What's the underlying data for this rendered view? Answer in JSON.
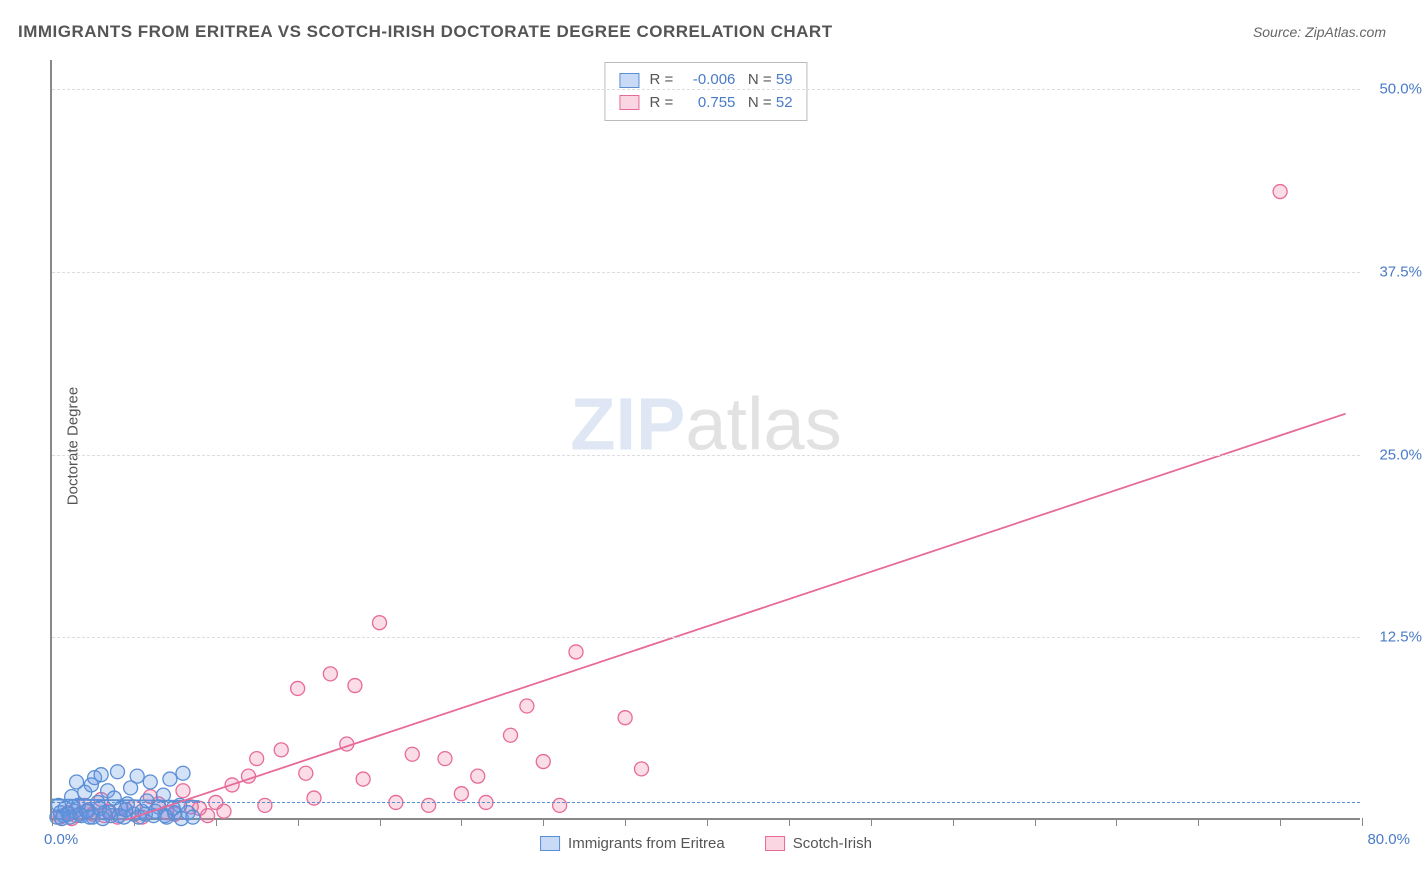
{
  "title": "IMMIGRANTS FROM ERITREA VS SCOTCH-IRISH DOCTORATE DEGREE CORRELATION CHART",
  "source_prefix": "Source: ",
  "source_name": "ZipAtlas.com",
  "ylabel": "Doctorate Degree",
  "watermark_a": "ZIP",
  "watermark_b": "atlas",
  "stats": {
    "series1": {
      "label_r": "R",
      "eq": "=",
      "r": "-0.006",
      "label_n": "N",
      "n": "59"
    },
    "series2": {
      "label_r": "R",
      "eq": "=",
      "r": "0.755",
      "label_n": "N",
      "n": "52"
    }
  },
  "legend": {
    "s1": "Immigrants from Eritrea",
    "s2": "Scotch-Irish"
  },
  "chart": {
    "type": "scatter",
    "xlim": [
      0,
      80
    ],
    "ylim": [
      0,
      52
    ],
    "x_origin_label": "0.0%",
    "x_max_label": "80.0%",
    "y_ticks": [
      {
        "v": 12.5,
        "label": "12.5%"
      },
      {
        "v": 25.0,
        "label": "25.0%"
      },
      {
        "v": 37.5,
        "label": "37.5%"
      },
      {
        "v": 50.0,
        "label": "50.0%"
      }
    ],
    "x_tick_step": 5,
    "dashed_y_line": 1.2,
    "background_color": "#ffffff",
    "grid_color": "#dddddd",
    "axis_color": "#888888",
    "label_color": "#4a7bc8",
    "marker_radius": 7,
    "marker_stroke_width": 1.3,
    "line_width": 1.8,
    "series": {
      "eritrea": {
        "color_fill": "rgba(100,150,230,0.28)",
        "color_stroke": "#5a8fd6",
        "trend": {
          "x1": 0,
          "y1": 1.4,
          "x2": 9,
          "y2": 1.3
        },
        "points": [
          [
            0.3,
            0.2
          ],
          [
            0.5,
            0.5
          ],
          [
            0.4,
            1.0
          ],
          [
            0.7,
            0.3
          ],
          [
            0.8,
            0.8
          ],
          [
            1.0,
            0.4
          ],
          [
            1.2,
            1.6
          ],
          [
            1.4,
            0.6
          ],
          [
            1.5,
            2.6
          ],
          [
            1.6,
            1.0
          ],
          [
            1.8,
            0.3
          ],
          [
            2.0,
            1.9
          ],
          [
            2.2,
            0.7
          ],
          [
            2.4,
            2.4
          ],
          [
            2.5,
            0.2
          ],
          [
            2.6,
            2.9
          ],
          [
            2.8,
            1.2
          ],
          [
            3.0,
            3.1
          ],
          [
            3.2,
            0.5
          ],
          [
            3.4,
            2.0
          ],
          [
            3.6,
            0.3
          ],
          [
            3.8,
            1.5
          ],
          [
            4.0,
            3.3
          ],
          [
            4.2,
            0.8
          ],
          [
            4.4,
            0.2
          ],
          [
            4.6,
            1.1
          ],
          [
            4.8,
            2.2
          ],
          [
            5.0,
            0.4
          ],
          [
            5.2,
            3.0
          ],
          [
            5.5,
            0.6
          ],
          [
            5.8,
            1.3
          ],
          [
            6.0,
            2.6
          ],
          [
            6.2,
            0.3
          ],
          [
            6.5,
            0.9
          ],
          [
            6.8,
            1.7
          ],
          [
            7.0,
            0.2
          ],
          [
            7.2,
            2.8
          ],
          [
            7.5,
            0.5
          ],
          [
            7.8,
            1.0
          ],
          [
            8.0,
            3.2
          ],
          [
            0.6,
            0.1
          ],
          [
            1.1,
            0.2
          ],
          [
            1.3,
            0.9
          ],
          [
            1.7,
            0.4
          ],
          [
            2.1,
            0.6
          ],
          [
            2.3,
            0.2
          ],
          [
            2.9,
            0.8
          ],
          [
            3.1,
            0.1
          ],
          [
            3.5,
            0.5
          ],
          [
            4.1,
            0.3
          ],
          [
            4.5,
            0.7
          ],
          [
            5.3,
            0.2
          ],
          [
            5.7,
            0.4
          ],
          [
            6.3,
            0.6
          ],
          [
            6.9,
            0.3
          ],
          [
            7.4,
            0.8
          ],
          [
            7.9,
            0.1
          ],
          [
            8.3,
            0.5
          ],
          [
            8.6,
            0.2
          ]
        ]
      },
      "scotch": {
        "color_fill": "rgba(240,120,160,0.25)",
        "color_stroke": "#e86a9a",
        "trend": {
          "x1": 4.5,
          "y1": 0,
          "x2": 79,
          "y2": 27.8
        },
        "points": [
          [
            75,
            43.0
          ],
          [
            0.5,
            0.2
          ],
          [
            1.0,
            0.5
          ],
          [
            1.5,
            0.3
          ],
          [
            2.0,
            1.0
          ],
          [
            2.5,
            0.4
          ],
          [
            3.0,
            1.4
          ],
          [
            3.5,
            0.6
          ],
          [
            4.0,
            0.2
          ],
          [
            5.0,
            0.9
          ],
          [
            6.0,
            1.6
          ],
          [
            7.0,
            0.5
          ],
          [
            8.0,
            2.0
          ],
          [
            9.0,
            0.8
          ],
          [
            10.0,
            1.2
          ],
          [
            11.0,
            2.4
          ],
          [
            12.0,
            3.0
          ],
          [
            12.5,
            4.2
          ],
          [
            13.0,
            1.0
          ],
          [
            14.0,
            4.8
          ],
          [
            15.0,
            9.0
          ],
          [
            15.5,
            3.2
          ],
          [
            16.0,
            1.5
          ],
          [
            17.0,
            10.0
          ],
          [
            18.0,
            5.2
          ],
          [
            18.5,
            9.2
          ],
          [
            19.0,
            2.8
          ],
          [
            20.0,
            13.5
          ],
          [
            21.0,
            1.2
          ],
          [
            22.0,
            4.5
          ],
          [
            23.0,
            1.0
          ],
          [
            24.0,
            4.2
          ],
          [
            25.0,
            1.8
          ],
          [
            26.0,
            3.0
          ],
          [
            26.5,
            1.2
          ],
          [
            28.0,
            5.8
          ],
          [
            29.0,
            7.8
          ],
          [
            30.0,
            4.0
          ],
          [
            31.0,
            1.0
          ],
          [
            32.0,
            11.5
          ],
          [
            35.0,
            7.0
          ],
          [
            36.0,
            3.5
          ],
          [
            1.2,
            0.1
          ],
          [
            2.2,
            0.6
          ],
          [
            3.2,
            0.3
          ],
          [
            4.5,
            0.7
          ],
          [
            5.5,
            0.2
          ],
          [
            6.5,
            1.1
          ],
          [
            7.5,
            0.4
          ],
          [
            8.5,
            0.9
          ],
          [
            9.5,
            0.3
          ],
          [
            10.5,
            0.6
          ]
        ]
      }
    }
  }
}
